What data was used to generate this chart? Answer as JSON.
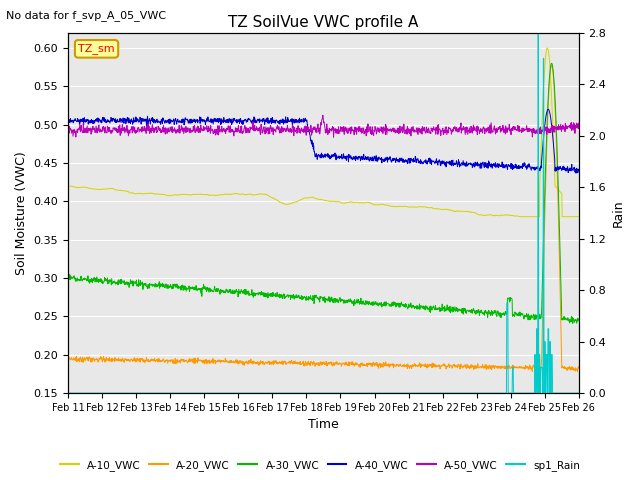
{
  "title": "TZ SoilVue VWC profile A",
  "no_data_text": "No data for f_svp_A_05_VWC",
  "xlabel": "Time",
  "ylabel_left": "Soil Moisture (VWC)",
  "ylabel_right": "Rain",
  "annotation_box": "TZ_sm",
  "ylim_left": [
    0.15,
    0.62
  ],
  "ylim_right": [
    0.0,
    2.8
  ],
  "yticks_left": [
    0.15,
    0.2,
    0.25,
    0.3,
    0.35,
    0.4,
    0.45,
    0.5,
    0.55,
    0.6
  ],
  "yticks_right": [
    0.0,
    0.4,
    0.8,
    1.2,
    1.6,
    2.0,
    2.4,
    2.8
  ],
  "xtick_labels": [
    "Feb 11",
    "Feb 12",
    "Feb 13",
    "Feb 14",
    "Feb 15",
    "Feb 16",
    "Feb 17",
    "Feb 18",
    "Feb 19",
    "Feb 20",
    "Feb 21",
    "Feb 22",
    "Feb 23",
    "Feb 24",
    "Feb 25",
    "Feb 26"
  ],
  "colors": {
    "A10": "#d4d400",
    "A20": "#ff9900",
    "A30": "#00bb00",
    "A40": "#0000cc",
    "A50": "#bb00bb",
    "Rain": "#00cccc",
    "bg": "#e8e8e8"
  },
  "legend_entries": [
    "A-10_VWC",
    "A-20_VWC",
    "A-30_VWC",
    "A-40_VWC",
    "A-50_VWC",
    "sp1_Rain"
  ]
}
